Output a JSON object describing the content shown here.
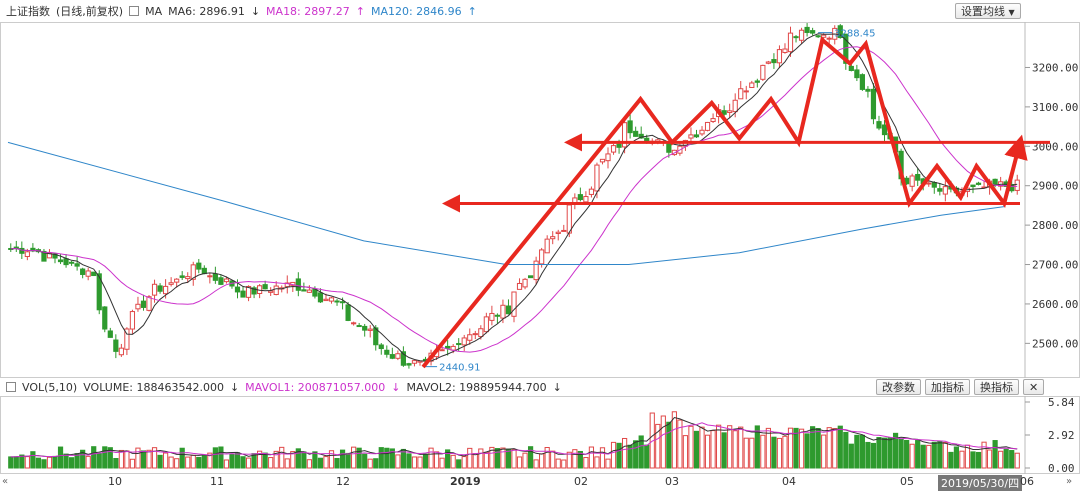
{
  "header": {
    "index_name": "上证指数",
    "mode": "(日线,前复权)",
    "ma_label": "MA",
    "ma6": "MA6: 2896.91",
    "ma18": "MA18: 2897.27",
    "ma120": "MA120: 2846.96",
    "settings_button": "设置均线",
    "ma6_color": "#333333",
    "ma18_color": "#cc33cc",
    "ma120_color": "#2f86c9"
  },
  "volume_header": {
    "label": "VOL(5,10)",
    "volume": "VOLUME: 188463542.000",
    "mavol1": "MAVOL1: 200871057.000",
    "mavol2": "MAVOL2: 198895944.700",
    "btn_change": "改参数",
    "btn_add": "加指标",
    "btn_switch": "换指标"
  },
  "chart_data": {
    "type": "candlestick",
    "title": "上证指数 (日线,前复权)",
    "price_axis_ticks": [
      "3200.00",
      "3100.00",
      "3000.00",
      "2900.00",
      "2800.00",
      "2700.00",
      "2600.00",
      "2500.00"
    ],
    "price_ylim": [
      2420,
      3300
    ],
    "volume_axis_ticks": [
      "5.84",
      "2.92",
      "0.00"
    ],
    "x_tick_labels": [
      "10",
      "11",
      "12",
      "2019",
      "02",
      "03",
      "04",
      "05",
      "06"
    ],
    "cursor_date": "2019/05/30/四",
    "annotations": {
      "high": "3288.45",
      "low": "2440.91"
    },
    "moving_averages": [
      {
        "name": "MA6",
        "value": 2896.91,
        "color": "#333333"
      },
      {
        "name": "MA18",
        "value": 2897.27,
        "color": "#cc33cc"
      },
      {
        "name": "MA120",
        "value": 2846.96,
        "color": "#2f86c9"
      }
    ],
    "price_path_keypoints": [
      [
        "2018-09-26",
        2740
      ],
      [
        "2018-10-12",
        2680
      ],
      [
        "2018-10-18",
        2480
      ],
      [
        "2018-10-26",
        2620
      ],
      [
        "2018-11-08",
        2690
      ],
      [
        "2018-11-20",
        2630
      ],
      [
        "2018-12-03",
        2650
      ],
      [
        "2018-12-12",
        2610
      ],
      [
        "2018-12-27",
        2470
      ],
      [
        "2019-01-04",
        2440.91
      ],
      [
        "2019-01-25",
        2590
      ],
      [
        "2019-02-25",
        3050
      ],
      [
        "2019-03-08",
        2990
      ],
      [
        "2019-03-22",
        3100
      ],
      [
        "2019-04-08",
        3280
      ],
      [
        "2019-04-19",
        3288.45
      ],
      [
        "2019-05-06",
        2920
      ],
      [
        "2019-05-17",
        2880
      ],
      [
        "2019-05-30",
        2900
      ]
    ],
    "volume_max": 5.84,
    "volume_current": 1.88,
    "grid": false
  },
  "drawings": {
    "color": "#e8281f",
    "horizontal_lines": [
      3010,
      2855
    ],
    "zigzag": [
      [
        "2019-01-04",
        2440
      ],
      [
        "2019-02-28",
        3120
      ],
      [
        "2019-03-08",
        3010
      ],
      [
        "2019-03-18",
        3110
      ],
      [
        "2019-03-25",
        3020
      ],
      [
        "2019-04-02",
        3120
      ],
      [
        "2019-04-09",
        3010
      ],
      [
        "2019-04-15",
        3270
      ],
      [
        "2019-04-22",
        3210
      ],
      [
        "2019-04-26",
        3260
      ],
      [
        "2019-05-07",
        2855
      ],
      [
        "2019-05-14",
        2950
      ],
      [
        "2019-05-20",
        2870
      ],
      [
        "2019-05-24",
        2950
      ],
      [
        "2019-05-31",
        2855
      ],
      [
        "2019-06-04",
        3010
      ]
    ]
  }
}
